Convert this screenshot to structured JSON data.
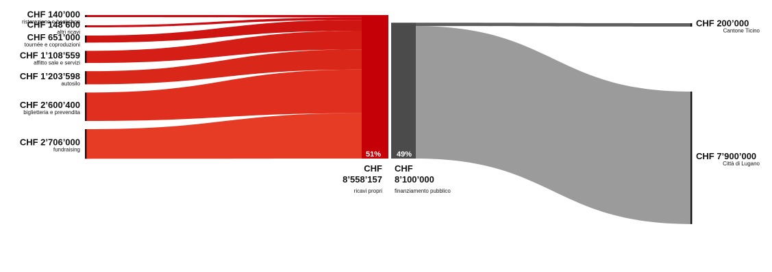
{
  "chart_data": {
    "type": "sankey",
    "sources": [
      {
        "amount": "CHF 140’000",
        "label": "ristorazione e bookshop",
        "value": 140000,
        "color": "#c8070f"
      },
      {
        "amount": "CHF 148’600",
        "label": "altri ricavi",
        "value": 148600,
        "color": "#cb0d12"
      },
      {
        "amount": "CHF 651’000",
        "label": "tournée e coproduzioni",
        "value": 651000,
        "color": "#ce1512"
      },
      {
        "amount": "CHF 1’108’559",
        "label": "affitto sale e servizi",
        "value": 1108559,
        "color": "#d51e16"
      },
      {
        "amount": "CHF 1’203’598",
        "label": "autosilo",
        "value": 1203598,
        "color": "#d9281a"
      },
      {
        "amount": "CHF 2’600’400",
        "label": "biglietteria e prevendita",
        "value": 2600400,
        "color": "#e12f1f"
      },
      {
        "amount": "CHF 2’706’000",
        "label": "fundraising",
        "value": 2706000,
        "color": "#e63b24"
      }
    ],
    "own": {
      "amount_line1": "CHF",
      "amount_line2": "8’558’157",
      "label": "ricavi propri",
      "percent": "51%",
      "value": 8558157,
      "color": "#c50006"
    },
    "public": {
      "amount_line1": "CHF",
      "amount_line2": "8’100’000",
      "label": "finanziamento pubblico",
      "percent": "49%",
      "value": 8100000,
      "color": "#4b4b4b"
    },
    "targets": [
      {
        "amount": "CHF 200’000",
        "label": "Cantone Ticino",
        "value": 200000,
        "color": "#5e5e5e"
      },
      {
        "amount": "CHF 7’900’000",
        "label": "Città di Lugano",
        "value": 7900000,
        "color": "#9b9b9b"
      }
    ]
  }
}
